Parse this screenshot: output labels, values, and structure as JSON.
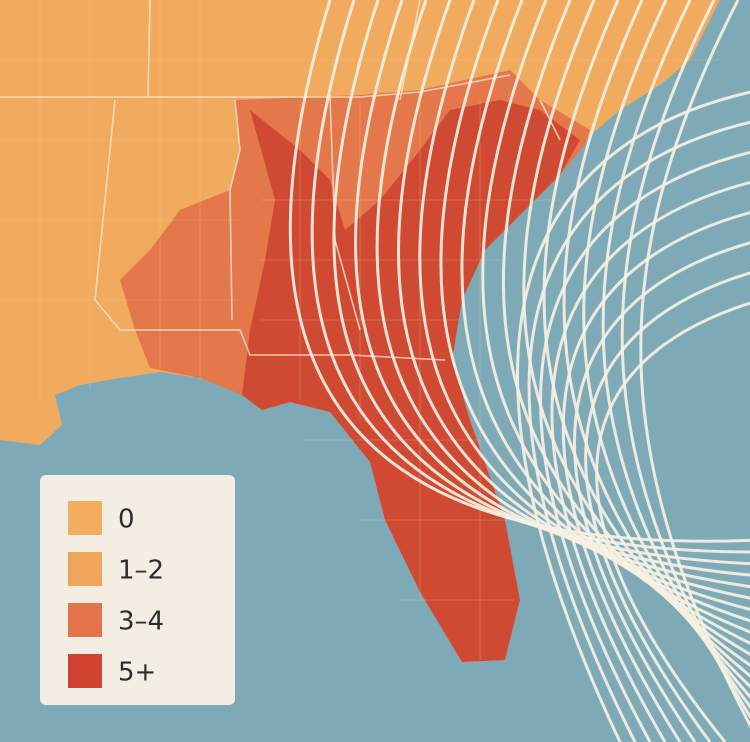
{
  "legend": {
    "items": [
      {
        "label": "0",
        "color": "#f2ad5f"
      },
      {
        "label": "1–2",
        "color": "#f0a65a"
      },
      {
        "label": "3–4",
        "color": "#e5734a"
      },
      {
        "label": "5+",
        "color": "#cf4330"
      }
    ]
  }
}
